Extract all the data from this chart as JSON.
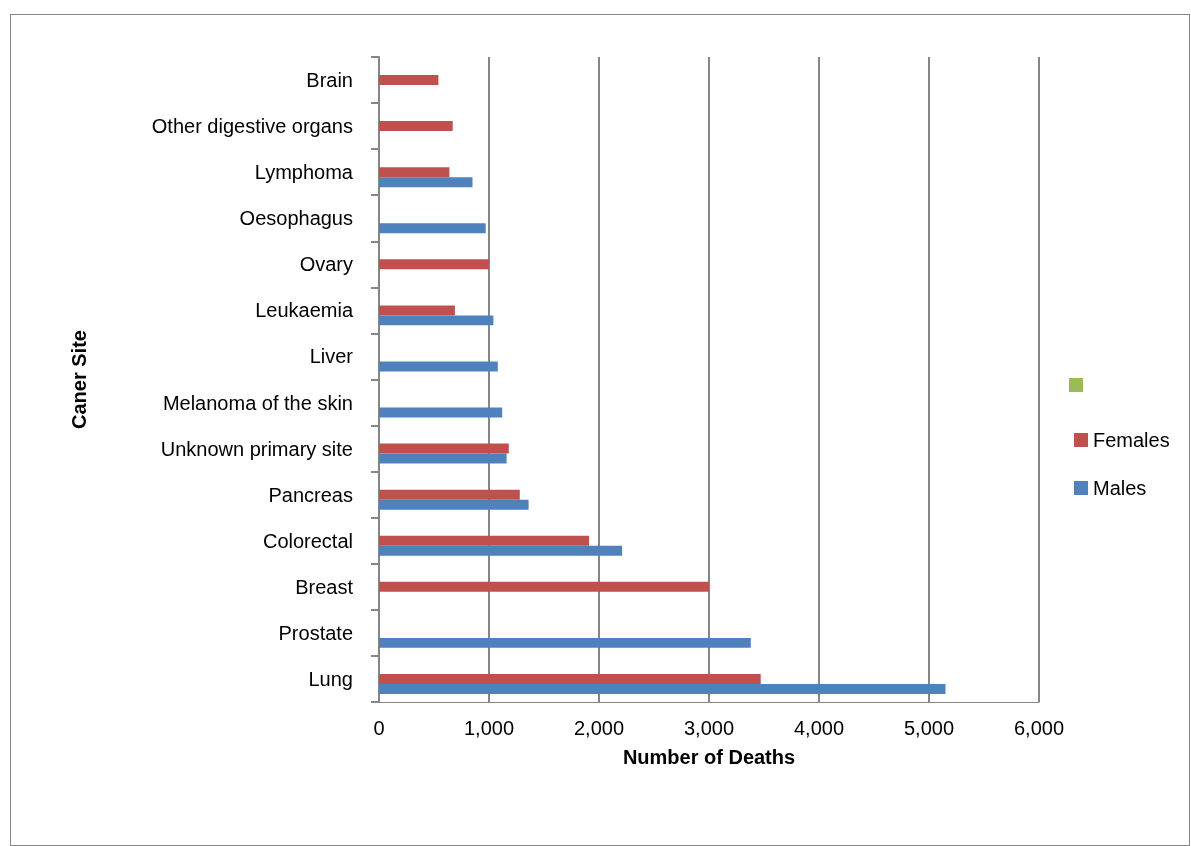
{
  "chart_data": {
    "type": "bar",
    "orientation": "horizontal",
    "xlabel": "Number of Deaths",
    "ylabel": "Caner Site",
    "categories": [
      "Brain",
      "Other digestive organs",
      "Lymphoma",
      "Oesophagus",
      "Ovary",
      "Leukaemia",
      "Liver",
      "Melanoma of the skin",
      "Unknown primary site",
      "Pancreas",
      "Colorectal",
      "Breast",
      "Prostate",
      "Lung"
    ],
    "series": [
      {
        "color": "#9bbb59",
        "values": [
          null,
          null,
          null,
          null,
          null,
          null,
          null,
          null,
          null,
          null,
          null,
          null,
          null,
          null
        ]
      },
      {
        "name": "Females",
        "color": "#c0504d",
        "values": [
          540,
          670,
          640,
          null,
          1000,
          690,
          null,
          null,
          1180,
          1280,
          1910,
          3000,
          null,
          3470
        ]
      },
      {
        "name": "Males",
        "color": "#4f81bd",
        "values": [
          null,
          null,
          850,
          970,
          null,
          1040,
          1080,
          1120,
          1160,
          1360,
          2210,
          null,
          3380,
          5150
        ]
      }
    ],
    "xlim": [
      0,
      6000
    ],
    "xticks": [
      {
        "value": 0,
        "label": "0"
      },
      {
        "value": 1000,
        "label": "1,000"
      },
      {
        "value": 2000,
        "label": "2,000"
      },
      {
        "value": 3000,
        "label": "3,000"
      },
      {
        "value": 4000,
        "label": "4,000"
      },
      {
        "value": 5000,
        "label": "5,000"
      },
      {
        "value": 6000,
        "label": "6,000"
      }
    ],
    "grid": "x",
    "legend": "right"
  }
}
